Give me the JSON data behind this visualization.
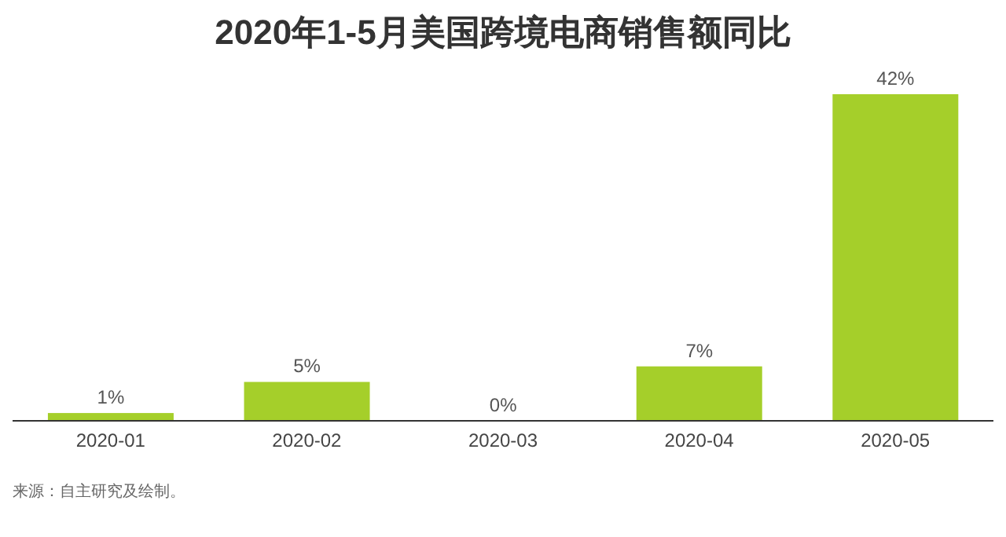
{
  "chart_data": {
    "type": "bar",
    "title": "2020年1-5月美国跨境电商销售额同比",
    "categories": [
      "2020-01",
      "2020-02",
      "2020-03",
      "2020-04",
      "2020-05"
    ],
    "values": [
      1,
      5,
      0,
      7,
      42
    ],
    "value_labels": [
      "1%",
      "5%",
      "0%",
      "7%",
      "42%"
    ],
    "color": "#a5cf2a",
    "tick_labels": "x",
    "annotations": [
      "来源：自主研究及绘制。"
    ]
  }
}
